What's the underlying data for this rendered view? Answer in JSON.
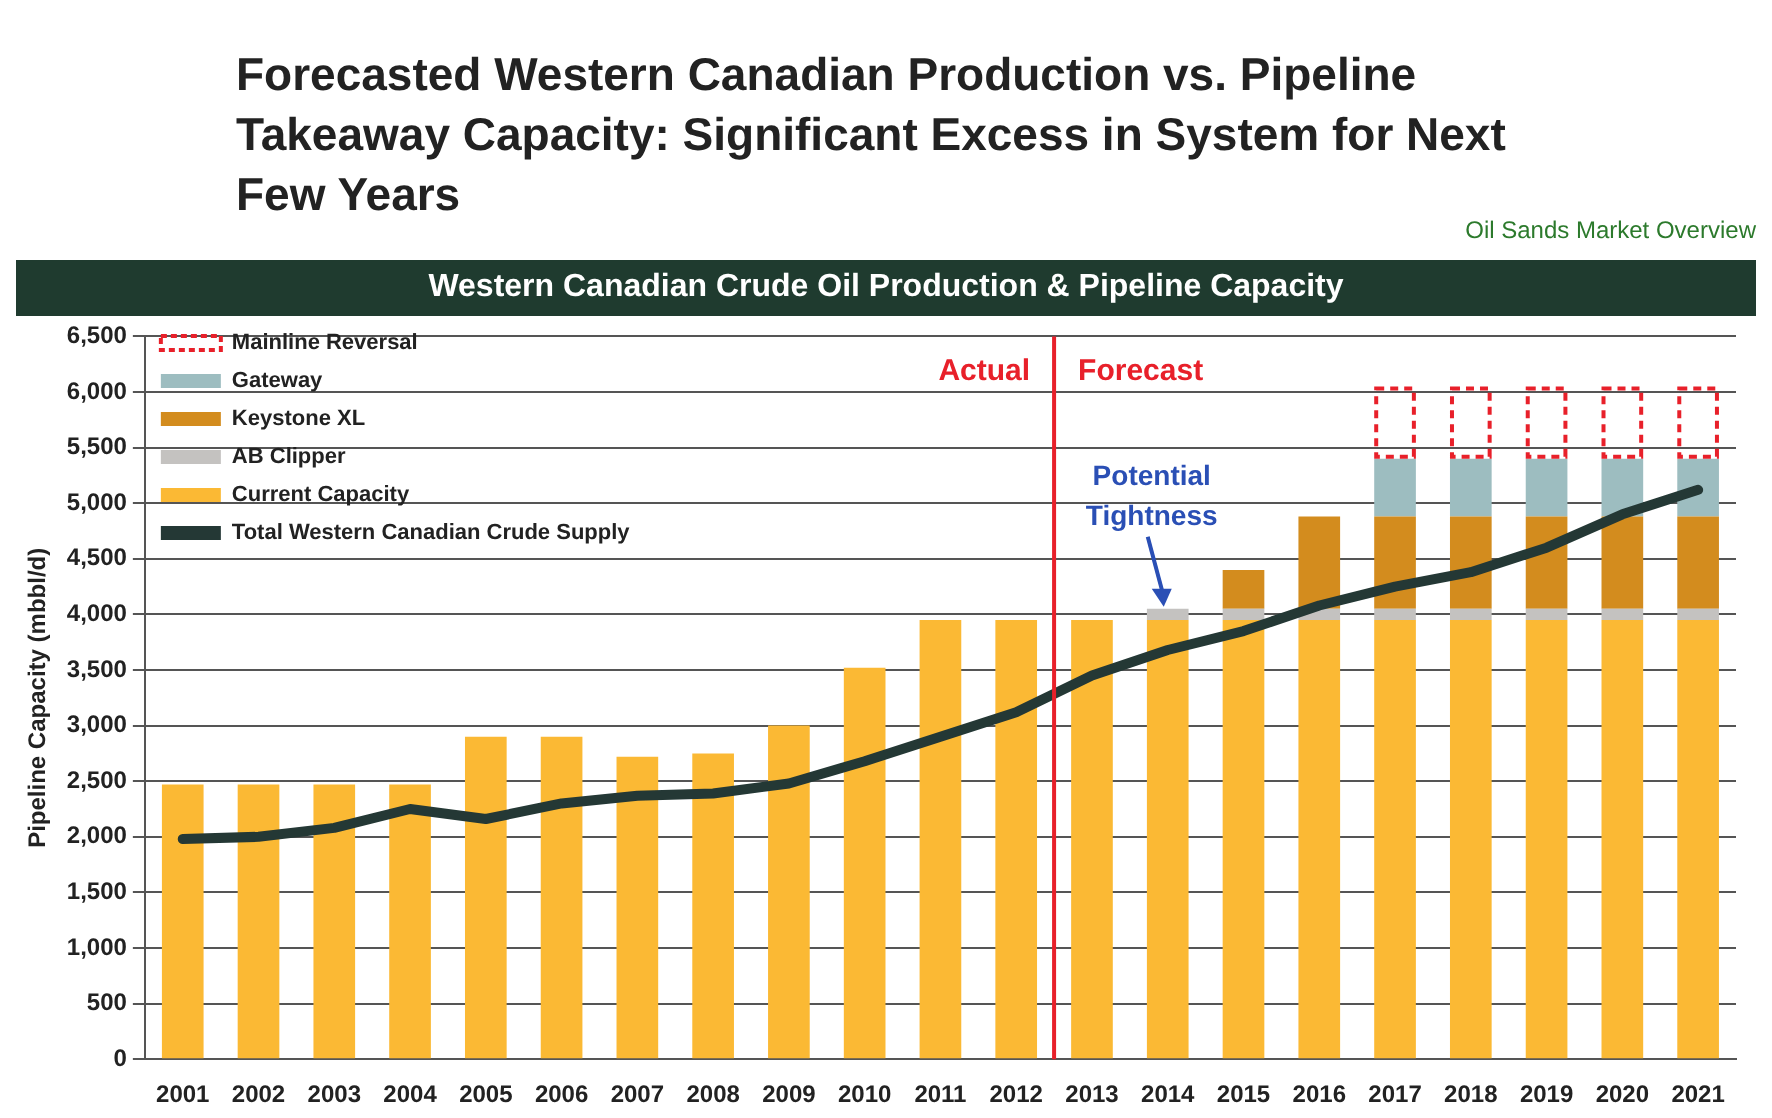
{
  "chart_data": {
    "type": "bar",
    "title": "Forecasted Western Canadian Production vs. Pipeline Takeaway Capacity: Significant Excess in System for Next Few Years",
    "subtitle": "Western Canadian Crude Oil Production & Pipeline Capacity",
    "ylabel": "Pipeline Capacity (mbbl/d)",
    "categories": [
      "2001",
      "2002",
      "2003",
      "2004",
      "2005",
      "2006",
      "2007",
      "2008",
      "2009",
      "2010",
      "2011",
      "2012",
      "2013",
      "2014",
      "2015",
      "2016",
      "2017",
      "2018",
      "2019",
      "2020",
      "2021"
    ],
    "stacked": true,
    "ylim": [
      0,
      6500
    ],
    "yticks": [
      {
        "value": 0,
        "label": "0"
      },
      {
        "value": 500,
        "label": "500"
      },
      {
        "value": 1000,
        "label": "1,000"
      },
      {
        "value": 1500,
        "label": "1,500"
      },
      {
        "value": 2000,
        "label": "2,000"
      },
      {
        "value": 2500,
        "label": "2,500"
      },
      {
        "value": 3000,
        "label": "3,000"
      },
      {
        "value": 3500,
        "label": "3,500"
      },
      {
        "value": 4000,
        "label": "4,000"
      },
      {
        "value": 4500,
        "label": "4,500"
      },
      {
        "value": 5000,
        "label": "5,000"
      },
      {
        "value": 5500,
        "label": "5,500"
      },
      {
        "value": 6000,
        "label": "6,000"
      },
      {
        "value": 6500,
        "label": "6,500"
      }
    ],
    "grid": "y",
    "legend": "top left",
    "series": [
      {
        "name": "Current Capacity",
        "color": "#fbb934",
        "values": [
          2470,
          2470,
          2470,
          2470,
          2900,
          2900,
          2720,
          2750,
          3000,
          3520,
          3950,
          3950,
          3950,
          3950,
          3950,
          3950,
          3950,
          3950,
          3950,
          3950,
          3950
        ]
      },
      {
        "name": "AB Clipper",
        "color": "#c4c2c0",
        "values": [
          null,
          null,
          null,
          null,
          null,
          null,
          null,
          null,
          null,
          null,
          null,
          null,
          null,
          100,
          100,
          100,
          100,
          100,
          100,
          100,
          100
        ]
      },
      {
        "name": "Keystone XL",
        "color": "#d38c1e",
        "values": [
          null,
          null,
          null,
          null,
          null,
          null,
          null,
          null,
          null,
          null,
          null,
          null,
          null,
          null,
          350,
          830,
          830,
          830,
          830,
          830,
          830
        ]
      },
      {
        "name": "Gateway",
        "color": "#9dbdc0",
        "values": [
          null,
          null,
          null,
          null,
          null,
          null,
          null,
          null,
          null,
          null,
          null,
          null,
          null,
          null,
          null,
          null,
          520,
          520,
          520,
          520,
          520
        ]
      },
      {
        "name": "Mainline Reversal",
        "color": "#e8202a",
        "line_style": "dashed",
        "values": [
          null,
          null,
          null,
          null,
          null,
          null,
          null,
          null,
          null,
          null,
          null,
          null,
          null,
          null,
          null,
          null,
          650,
          650,
          650,
          650,
          650
        ]
      },
      {
        "name": "Total Western Canadian Crude Supply",
        "type": "line",
        "color": "#243835",
        "values": [
          1980,
          2000,
          2080,
          2250,
          2160,
          2300,
          2370,
          2390,
          2480,
          2680,
          2900,
          3120,
          3450,
          3680,
          3850,
          4080,
          4250,
          4380,
          4600,
          4900,
          5120
        ]
      }
    ],
    "ref_lines": [
      {
        "axis": "x",
        "value": "2013",
        "color": "#e8202a"
      }
    ],
    "annotations": [
      "Oil Sands Market Overview",
      "Actual",
      "Forecast",
      {
        "text": "Potential Tightness",
        "x": "2014",
        "y": 4050
      }
    ]
  }
}
